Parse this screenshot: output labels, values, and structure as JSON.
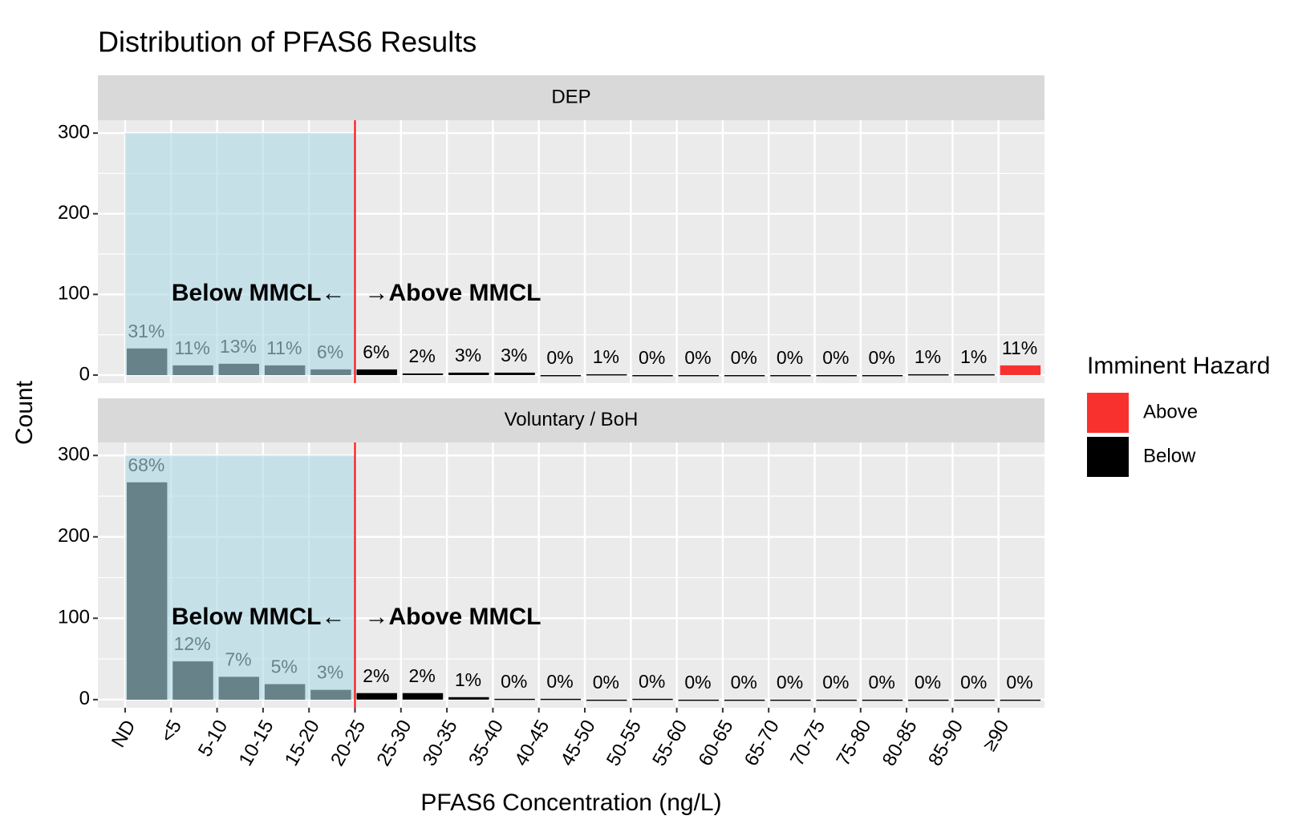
{
  "chart_data": {
    "type": "bar",
    "title": "Distribution of PFAS6 Results",
    "x_label": "PFAS6 Concentration (ng/L)",
    "y_label": "Count",
    "facets": [
      "DEP",
      "Voluntary / BoH"
    ],
    "categories": [
      "ND",
      "<5",
      "5-10",
      "10-15",
      "15-20",
      "20-25",
      "25-30",
      "30-35",
      "35-40",
      "40-45",
      "45-50",
      "50-55",
      "55-60",
      "60-65",
      "65-70",
      "70-75",
      "75-80",
      "80-85",
      "85-90",
      "≥90"
    ],
    "series": [
      {
        "name": "Above",
        "color": "#f8312f",
        "values": [
          [
            null,
            null,
            null,
            null,
            null,
            null,
            null,
            null,
            null,
            null,
            null,
            null,
            null,
            null,
            null,
            null,
            null,
            null,
            null,
            12
          ],
          [
            null,
            null,
            null,
            null,
            null,
            null,
            null,
            null,
            null,
            null,
            null,
            null,
            null,
            null,
            null,
            null,
            null,
            null,
            null,
            null
          ]
        ],
        "percent_labels": [
          [
            null,
            null,
            null,
            null,
            null,
            null,
            null,
            null,
            null,
            null,
            null,
            null,
            null,
            null,
            null,
            null,
            null,
            null,
            null,
            "11%"
          ],
          [
            null,
            null,
            null,
            null,
            null,
            null,
            null,
            null,
            null,
            null,
            null,
            null,
            null,
            null,
            null,
            null,
            null,
            null,
            null,
            null
          ]
        ]
      },
      {
        "name": "Below",
        "color": "#000000",
        "values": [
          [
            33,
            12,
            14,
            12,
            7,
            7,
            2,
            3,
            3,
            0,
            1,
            0,
            0,
            0,
            0,
            0,
            0,
            1,
            1,
            null
          ],
          [
            267,
            47,
            28,
            19,
            12,
            8,
            8,
            3,
            1,
            1,
            0,
            1,
            0,
            0,
            0,
            0,
            0,
            0,
            0,
            0
          ]
        ],
        "percent_labels": [
          [
            "31%",
            "11%",
            "13%",
            "11%",
            "6%",
            "6%",
            "2%",
            "3%",
            "3%",
            "0%",
            "1%",
            "0%",
            "0%",
            "0%",
            "0%",
            "0%",
            "0%",
            "1%",
            "1%",
            null
          ],
          [
            "68%",
            "12%",
            "7%",
            "5%",
            "3%",
            "2%",
            "2%",
            "1%",
            "0%",
            "0%",
            "0%",
            "0%",
            "0%",
            "0%",
            "0%",
            "0%",
            "0%",
            "0%",
            "0%",
            "0%"
          ]
        ]
      }
    ],
    "ylim": [
      -10,
      316
    ],
    "yticks": [
      0,
      100,
      200,
      300
    ],
    "minor_yticks": [
      50,
      150,
      250
    ],
    "grid": true,
    "legend_title": "Imminent Hazard",
    "legend_position": "right",
    "mmcl": 20,
    "bin_width": 5,
    "shade": {
      "ymax": 300,
      "color": "#add8e6",
      "opacity": 0.6
    },
    "annotations": [
      {
        "text": "Below MMCL←",
        "y": 100,
        "side": "left"
      },
      {
        "text": "→Above MMCL",
        "y": 100,
        "side": "right"
      }
    ]
  }
}
